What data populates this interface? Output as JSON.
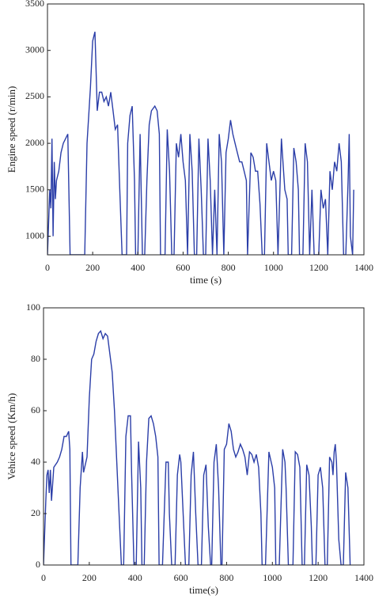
{
  "chart_data": [
    {
      "type": "line",
      "ylabel": "Engine speed (r/min)",
      "xlabel": "time (s)",
      "xlim": [
        0,
        1400
      ],
      "xticks": [
        0,
        200,
        400,
        600,
        800,
        1000,
        1200,
        1400
      ],
      "ylim": [
        800,
        3500
      ],
      "yticks": [
        1000,
        1500,
        2000,
        2500,
        3000,
        3500
      ],
      "series": [
        {
          "name": "Engine speed",
          "color": "#2b3ea8",
          "x": [
            0,
            10,
            15,
            20,
            25,
            30,
            35,
            40,
            50,
            60,
            70,
            80,
            90,
            100,
            130,
            150,
            165,
            175,
            190,
            200,
            210,
            215,
            220,
            230,
            240,
            250,
            260,
            270,
            280,
            290,
            300,
            310,
            320,
            330,
            340,
            350,
            355,
            365,
            375,
            385,
            390,
            400,
            410,
            420,
            430,
            440,
            450,
            460,
            475,
            485,
            495,
            500,
            520,
            530,
            540,
            550,
            560,
            570,
            580,
            590,
            600,
            610,
            620,
            630,
            640,
            650,
            660,
            670,
            680,
            690,
            700,
            710,
            720,
            730,
            740,
            750,
            760,
            770,
            780,
            790,
            800,
            810,
            820,
            830,
            840,
            850,
            860,
            870,
            880,
            885,
            900,
            910,
            920,
            930,
            940,
            950,
            960,
            970,
            980,
            990,
            1000,
            1010,
            1020,
            1035,
            1050,
            1060,
            1065,
            1080,
            1090,
            1100,
            1110,
            1115,
            1130,
            1140,
            1150,
            1160,
            1170,
            1180,
            1200,
            1210,
            1220,
            1230,
            1240,
            1250,
            1260,
            1270,
            1280,
            1290,
            1300,
            1310,
            1320,
            1330,
            1335,
            1340,
            1350,
            1355
          ],
          "values": [
            800,
            1500,
            1300,
            2050,
            1000,
            1800,
            1400,
            1600,
            1700,
            1900,
            2000,
            2050,
            2100,
            800,
            800,
            800,
            800,
            2000,
            2600,
            3100,
            3200,
            2800,
            2350,
            2550,
            2550,
            2450,
            2500,
            2400,
            2550,
            2350,
            2150,
            2200,
            1500,
            800,
            800,
            800,
            2000,
            2300,
            2400,
            1600,
            800,
            800,
            2100,
            800,
            800,
            1600,
            2200,
            2350,
            2400,
            2350,
            2100,
            800,
            800,
            2150,
            1700,
            800,
            800,
            2000,
            1850,
            2100,
            1800,
            1600,
            800,
            2100,
            1700,
            800,
            800,
            2050,
            1500,
            800,
            800,
            2050,
            1600,
            800,
            1500,
            800,
            2100,
            1800,
            800,
            1900,
            2050,
            2250,
            2100,
            2000,
            1900,
            1800,
            1800,
            1700,
            1600,
            800,
            1900,
            1850,
            1700,
            1700,
            1350,
            800,
            800,
            2000,
            1800,
            1600,
            1700,
            1600,
            800,
            2050,
            1500,
            1400,
            800,
            800,
            1950,
            1800,
            1500,
            800,
            800,
            2000,
            1800,
            800,
            1500,
            800,
            800,
            1500,
            1300,
            1400,
            800,
            1700,
            1500,
            1800,
            1700,
            2000,
            1800,
            800,
            800,
            1600,
            2100,
            1000,
            800,
            1500
          ]
        }
      ]
    },
    {
      "type": "line",
      "ylabel": "Vehice speed (Km/h)",
      "xlabel": "time(s)",
      "xlim": [
        0,
        1400
      ],
      "xticks": [
        0,
        200,
        400,
        600,
        800,
        1000,
        1200,
        1400
      ],
      "ylim": [
        0,
        100
      ],
      "yticks": [
        0,
        20,
        40,
        60,
        80,
        100
      ],
      "series": [
        {
          "name": "Vehicle speed",
          "color": "#2b3ea8",
          "x": [
            0,
            10,
            15,
            20,
            25,
            30,
            35,
            45,
            60,
            70,
            80,
            90,
            100,
            110,
            115,
            120,
            150,
            160,
            170,
            175,
            190,
            200,
            210,
            220,
            230,
            240,
            250,
            260,
            270,
            280,
            290,
            300,
            310,
            320,
            330,
            340,
            350,
            360,
            370,
            380,
            385,
            395,
            405,
            415,
            425,
            430,
            440,
            450,
            460,
            470,
            480,
            490,
            500,
            505,
            520,
            535,
            545,
            550,
            560,
            575,
            585,
            595,
            600,
            610,
            620,
            635,
            645,
            655,
            665,
            675,
            690,
            700,
            710,
            720,
            730,
            735,
            745,
            755,
            765,
            775,
            780,
            790,
            800,
            810,
            820,
            830,
            840,
            850,
            860,
            870,
            880,
            890,
            900,
            910,
            920,
            930,
            940,
            950,
            955,
            970,
            985,
            995,
            1000,
            1010,
            1015,
            1030,
            1045,
            1055,
            1060,
            1070,
            1090,
            1100,
            1110,
            1120,
            1130,
            1140,
            1150,
            1160,
            1170,
            1175,
            1190,
            1200,
            1210,
            1220,
            1230,
            1240,
            1250,
            1260,
            1265,
            1270,
            1275,
            1280,
            1290,
            1300,
            1310,
            1320,
            1330,
            1340
          ],
          "values": [
            0,
            25,
            35,
            37,
            28,
            37,
            25,
            38,
            40,
            42,
            45,
            50,
            50,
            52,
            45,
            0,
            0,
            30,
            44,
            36,
            42,
            65,
            80,
            82,
            87,
            90,
            91,
            88,
            90,
            89,
            82,
            75,
            60,
            40,
            20,
            0,
            0,
            50,
            58,
            58,
            35,
            0,
            0,
            48,
            30,
            0,
            0,
            40,
            57,
            58,
            55,
            50,
            42,
            0,
            0,
            40,
            40,
            20,
            0,
            0,
            35,
            43,
            40,
            20,
            0,
            0,
            35,
            44,
            20,
            0,
            0,
            35,
            39,
            15,
            0,
            0,
            40,
            47,
            30,
            0,
            0,
            45,
            47,
            55,
            52,
            45,
            42,
            44,
            47,
            45,
            42,
            35,
            44,
            43,
            40,
            43,
            38,
            20,
            0,
            0,
            44,
            40,
            38,
            30,
            0,
            0,
            45,
            40,
            30,
            0,
            0,
            44,
            43,
            38,
            0,
            0,
            39,
            35,
            15,
            0,
            0,
            35,
            38,
            30,
            0,
            0,
            42,
            40,
            35,
            44,
            47,
            40,
            10,
            0,
            0,
            36,
            30,
            0
          ]
        }
      ]
    }
  ]
}
